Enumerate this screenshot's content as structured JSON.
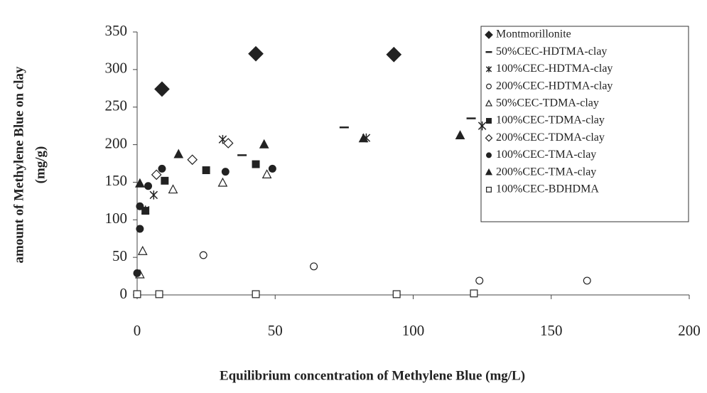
{
  "chart_data": {
    "type": "scatter",
    "xlabel": "Equilibrium concentration of Methylene Blue (mg/L)",
    "ylabel": [
      "amount of Methylene Blue on clay",
      "(mg/g)"
    ],
    "xlim": [
      0,
      200
    ],
    "ylim": [
      0,
      350
    ],
    "xticks": [
      0,
      50,
      100,
      150,
      200
    ],
    "yticks": [
      0,
      50,
      100,
      150,
      200,
      250,
      300,
      350
    ],
    "grid": false,
    "legend": "upper right",
    "series": [
      {
        "name": "Montmorillonite",
        "color": "#222",
        "marker": "filled-diamond",
        "x": [
          9,
          43,
          93
        ],
        "values": [
          274,
          321,
          320
        ]
      },
      {
        "name": "50%CEC-HDTMA-clay",
        "color": "#222",
        "marker": "dash",
        "x": [
          38,
          75,
          121
        ],
        "values": [
          186,
          223,
          235
        ]
      },
      {
        "name": "100%CEC-HDTMA-clay",
        "color": "#222",
        "marker": "asterisk",
        "x": [
          3,
          6,
          31,
          83,
          125
        ],
        "values": [
          113,
          133,
          207,
          209,
          225
        ]
      },
      {
        "name": "200%CEC-HDTMA-clay",
        "color": "#222",
        "marker": "open-circle",
        "x": [
          24,
          64,
          124,
          163
        ],
        "values": [
          53,
          38,
          19,
          19
        ]
      },
      {
        "name": "50%CEC-TDMA-clay",
        "color": "#222",
        "marker": "open-triangle",
        "x": [
          1,
          2,
          13,
          31,
          47
        ],
        "values": [
          27,
          58,
          140,
          149,
          160
        ]
      },
      {
        "name": "100%CEC-TDMA-clay",
        "color": "#222",
        "marker": "filled-square",
        "x": [
          3,
          10,
          25,
          43
        ],
        "values": [
          112,
          152,
          166,
          174
        ]
      },
      {
        "name": "200%CEC-TDMA-clay",
        "color": "#222",
        "marker": "open-diamond",
        "x": [
          7,
          20,
          33
        ],
        "values": [
          160,
          180,
          202
        ]
      },
      {
        "name": "100%CEC-TMA-clay",
        "color": "#222",
        "marker": "filled-circle",
        "x": [
          0,
          1,
          1,
          4,
          9,
          32,
          49
        ],
        "values": [
          29,
          88,
          118,
          145,
          168,
          164,
          168
        ]
      },
      {
        "name": "200%CEC-TMA-clay",
        "color": "#222",
        "marker": "filled-triangle",
        "x": [
          1,
          15,
          46,
          82,
          117
        ],
        "values": [
          148,
          187,
          200,
          208,
          212
        ]
      },
      {
        "name": "100%CEC-BDHDMA",
        "color": "#222",
        "marker": "open-square",
        "x": [
          0,
          8,
          43,
          94,
          122
        ],
        "values": [
          1,
          1,
          1,
          1,
          2
        ]
      }
    ]
  }
}
